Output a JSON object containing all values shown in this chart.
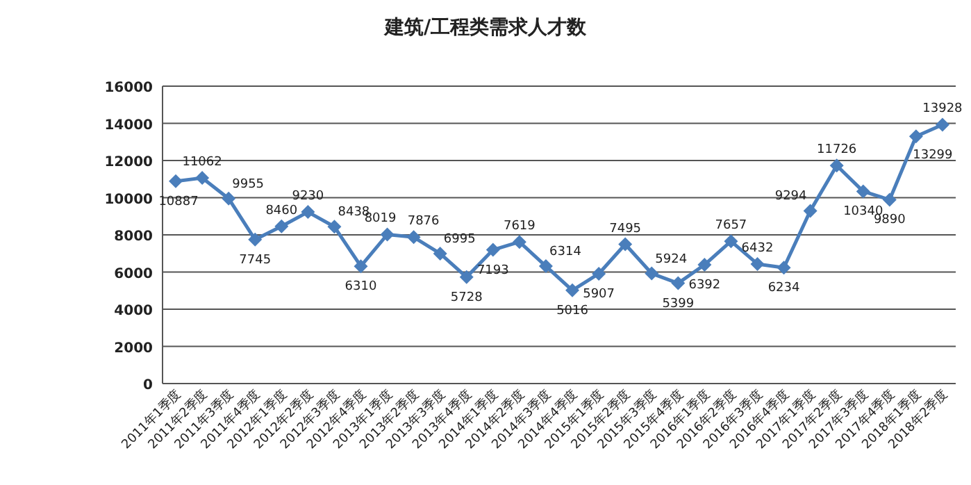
{
  "chart_data": {
    "type": "line",
    "title": "建筑/工程类需求人才数",
    "categories": [
      "2011年1季度",
      "2011年2季度",
      "2011年3季度",
      "2011年4季度",
      "2012年1季度",
      "2012年2季度",
      "2012年3季度",
      "2012年4季度",
      "2013年1季度",
      "2013年2季度",
      "2013年3季度",
      "2013年4季度",
      "2014年1季度",
      "2014年2季度",
      "2014年3季度",
      "2014年4季度",
      "2015年1季度",
      "2015年2季度",
      "2015年3季度",
      "2015年4季度",
      "2016年1季度",
      "2016年2季度",
      "2016年3季度",
      "2016年4季度",
      "2017年1季度",
      "2017年2季度",
      "2017年3季度",
      "2017年4季度",
      "2018年1季度",
      "2018年2季度"
    ],
    "values": [
      10887,
      11062,
      9955,
      7745,
      8460,
      9230,
      8438,
      6310,
      8019,
      7876,
      6995,
      5728,
      7193,
      7619,
      6314,
      5016,
      5907,
      7495,
      5924,
      5399,
      6392,
      7657,
      6432,
      6234,
      9294,
      11726,
      10340,
      9890,
      13299,
      13928
    ],
    "color": "#4a7ebb",
    "ylim": [
      0,
      16000
    ],
    "yticks": [
      0,
      2000,
      4000,
      6000,
      8000,
      10000,
      12000,
      14000,
      16000
    ],
    "grid": "y",
    "marker": "diamond",
    "line_style": "solid",
    "data_labels": true
  }
}
